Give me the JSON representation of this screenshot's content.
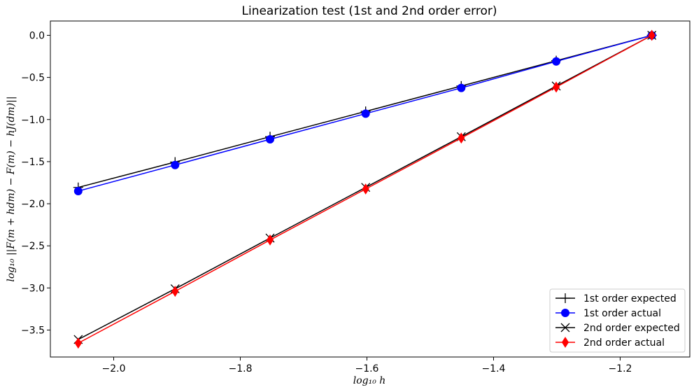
{
  "chart_data": {
    "type": "line",
    "title": "Linearization test (1st and 2nd order error)",
    "xlabel": "log₁₀ h",
    "ylabel": "log₁₀ ||F(m + hdm) − F(m) − hJ(dm)||",
    "xlim": [
      -2.1,
      -1.09
    ],
    "ylim": [
      -3.82,
      0.17
    ],
    "xticks": [
      -2.0,
      -1.8,
      -1.6,
      -1.4,
      -1.2
    ],
    "xtick_labels": [
      "−2.0",
      "−1.8",
      "−1.6",
      "−1.4",
      "−1.2"
    ],
    "yticks": [
      0.0,
      -0.5,
      -1.0,
      -1.5,
      -2.0,
      -2.5,
      -3.0,
      -3.5
    ],
    "ytick_labels": [
      "0.0",
      "−0.5",
      "−1.0",
      "−1.5",
      "−2.0",
      "−2.5",
      "−3.0",
      "−3.5"
    ],
    "grid": false,
    "legend_position": "bottom-right",
    "x": [
      -2.056,
      -1.903,
      -1.753,
      -1.602,
      -1.451,
      -1.301,
      -1.15
    ],
    "series": [
      {
        "name": "1st order expected",
        "color": "#000000",
        "marker": "plus",
        "values": [
          -1.806,
          -1.505,
          -1.204,
          -0.903,
          -0.602,
          -0.301,
          0.0
        ]
      },
      {
        "name": "1st order actual",
        "color": "#0000ff",
        "marker": "circle",
        "values": [
          -1.85,
          -1.54,
          -1.235,
          -0.93,
          -0.625,
          -0.31,
          0.0
        ]
      },
      {
        "name": "2nd order expected",
        "color": "#000000",
        "marker": "x",
        "values": [
          -3.612,
          -3.01,
          -2.408,
          -1.806,
          -1.204,
          -0.602,
          0.0
        ]
      },
      {
        "name": "2nd order actual",
        "color": "#ff0000",
        "marker": "thin_diamond",
        "values": [
          -3.655,
          -3.04,
          -2.43,
          -1.825,
          -1.22,
          -0.615,
          0.0
        ]
      }
    ]
  }
}
